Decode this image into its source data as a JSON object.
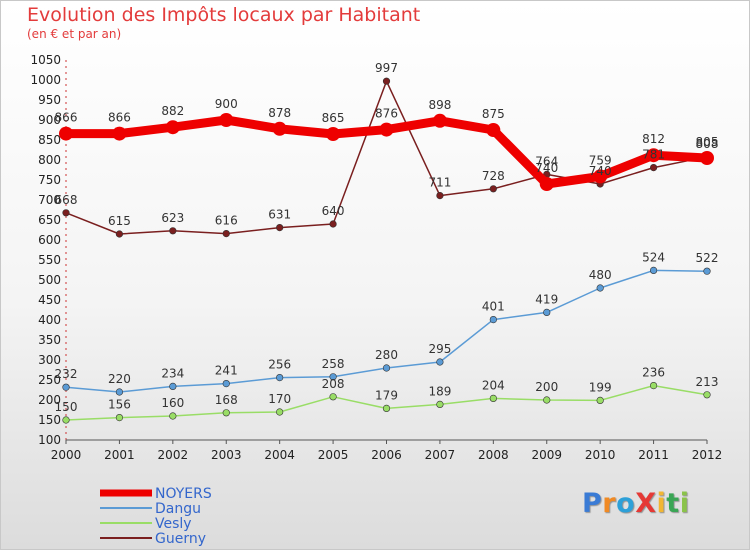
{
  "title": "Evolution des Impôts locaux par Habitant",
  "subtitle": "(en € et par an)",
  "logo_text": "ProXiti",
  "chart_data": {
    "type": "line",
    "title": "Evolution des Impôts locaux par Habitant",
    "subtitle": "(en € et par an)",
    "x": [
      "2000",
      "2001",
      "2002",
      "2003",
      "2004",
      "2005",
      "2006",
      "2007",
      "2008",
      "2009",
      "2010",
      "2011",
      "2012"
    ],
    "ylim": [
      100,
      1050
    ],
    "yticks": [
      100,
      150,
      200,
      250,
      300,
      350,
      400,
      450,
      500,
      550,
      600,
      650,
      700,
      750,
      800,
      850,
      900,
      950,
      1000,
      1050
    ],
    "grid": false,
    "legend": "bottom-left",
    "series": [
      {
        "name": "NOYERS",
        "color": "#ee0000",
        "values": [
          866,
          866,
          882,
          900,
          878,
          865,
          876,
          898,
          875,
          740,
          759,
          812,
          805
        ]
      },
      {
        "name": "Dangu",
        "color": "#5b9bd5",
        "values": [
          232,
          220,
          234,
          241,
          256,
          258,
          280,
          295,
          401,
          419,
          480,
          524,
          522
        ]
      },
      {
        "name": "Vesly",
        "color": "#99dd66",
        "values": [
          150,
          156,
          160,
          168,
          170,
          208,
          179,
          189,
          204,
          200,
          199,
          236,
          213
        ]
      },
      {
        "name": "Guerny",
        "color": "#7a1f1f",
        "values": [
          668,
          615,
          623,
          616,
          631,
          640,
          997,
          711,
          728,
          764,
          740,
          781,
          808
        ]
      }
    ]
  }
}
